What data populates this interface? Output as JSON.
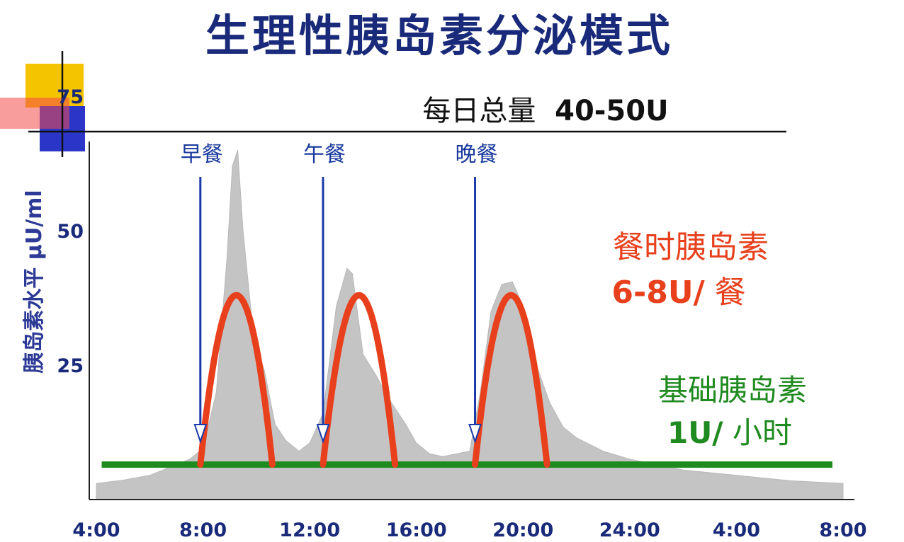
{
  "chart_data": {
    "type": "area",
    "title": "生理性胰岛素分泌模式",
    "subtitle": {
      "label": "每日总量",
      "value": "40-50U"
    },
    "ylabel": "胰岛素水平 μU/ml",
    "xlabel": "",
    "x_tick_labels": [
      "4:00",
      "8:00",
      "12:00",
      "16:00",
      "20:00",
      "24:00",
      "4:00",
      "8:00"
    ],
    "x_ticks_hours": [
      4,
      8,
      12,
      16,
      20,
      24,
      28,
      32
    ],
    "xlim_hours": [
      4,
      32
    ],
    "y_ticks": [
      25,
      50,
      75
    ],
    "ylim": [
      0,
      80
    ],
    "grid": false,
    "meals": [
      {
        "label": "早餐",
        "time_hours": 7.9
      },
      {
        "label": "午餐",
        "time_hours": 12.5
      },
      {
        "label": "晚餐",
        "time_hours": 18.2
      }
    ],
    "physiological_curve": {
      "time_hours": [
        4.0,
        5.0,
        6.0,
        7.0,
        7.5,
        8.0,
        8.5,
        8.9,
        9.1,
        9.3,
        9.5,
        9.9,
        10.3,
        10.7,
        11.1,
        11.6,
        12.0,
        12.5,
        12.7,
        13.0,
        13.4,
        13.6,
        14.0,
        14.5,
        15.0,
        15.6,
        16.0,
        16.5,
        17.0,
        18.0,
        18.4,
        18.8,
        19.2,
        19.6,
        20.0,
        20.5,
        21.0,
        21.5,
        22.0,
        23.0,
        24.0,
        26.0,
        28.0,
        30.0,
        32.0
      ],
      "values": [
        3.0,
        3.6,
        4.5,
        6.5,
        7.5,
        9.5,
        20.0,
        45.0,
        62.0,
        65.0,
        50.0,
        30.0,
        24.0,
        14.0,
        11.0,
        9.0,
        10.5,
        16.0,
        24.0,
        36.0,
        43.0,
        42.0,
        27.0,
        23.0,
        18.5,
        14.0,
        10.5,
        8.5,
        8.0,
        9.0,
        20.0,
        35.0,
        40.0,
        40.5,
        36.0,
        25.0,
        18.0,
        13.5,
        11.5,
        9.0,
        7.5,
        5.5,
        4.5,
        3.5,
        3.0
      ]
    },
    "meal_insulin_curves": [
      {
        "start_hours": 7.9,
        "end_hours": 10.6,
        "peak": 38.0
      },
      {
        "start_hours": 12.5,
        "end_hours": 15.2,
        "peak": 38.0
      },
      {
        "start_hours": 18.2,
        "end_hours": 20.9,
        "peak": 38.0
      }
    ],
    "basal_insulin": {
      "value": 6.5,
      "start_hours": 4.2,
      "end_hours": 31.6
    },
    "annotations": {
      "meal_insulin": {
        "line1": "餐时胰岛素",
        "line2_value": "6-8U/",
        "line2_unit": "餐"
      },
      "basal_insulin": {
        "line1": "基础胰岛素",
        "line2_value": "1U/",
        "line2_unit": "小时"
      }
    },
    "colors": {
      "title": "#1a2a7a",
      "axis_label": "#2d3a96",
      "meal_label": "#1a3a9e",
      "meal_arrow": "#1a3aaa",
      "area_fill": "#c4c4c4",
      "meal_curve": "#e8401c",
      "basal_line": "#1f8a1f",
      "meal_text": "#e8401c",
      "basal_text": "#1f8a1f",
      "tick_label": "#1a2a7a"
    }
  }
}
